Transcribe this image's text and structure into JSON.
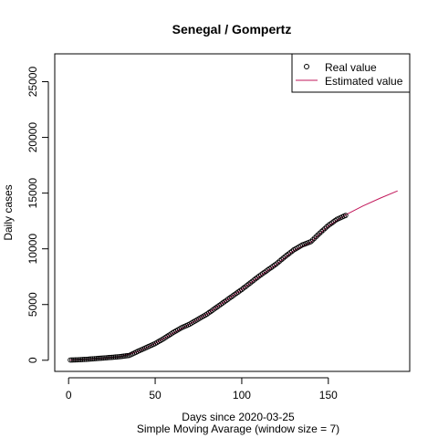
{
  "chart_data": {
    "type": "line",
    "title": "Senegal / Gompertz",
    "xlabel": "Days since 2020-03-25",
    "subtitle": "Simple Moving Avarage (window size = 7)",
    "ylabel": "Daily cases",
    "xlim": [
      -8,
      197
    ],
    "ylim": [
      -1000,
      27500
    ],
    "x_ticks": [
      0,
      50,
      100,
      150
    ],
    "y_ticks": [
      0,
      5000,
      10000,
      15000,
      20000,
      25000
    ],
    "grid": false,
    "legend_position": "top-right",
    "series": [
      {
        "name": "Real value",
        "style": "points",
        "color": "#000000",
        "x_range": [
          1,
          160
        ],
        "x": [
          1,
          5,
          10,
          15,
          20,
          25,
          30,
          35,
          40,
          45,
          50,
          55,
          60,
          65,
          70,
          75,
          80,
          85,
          90,
          95,
          100,
          105,
          110,
          115,
          120,
          125,
          130,
          135,
          140,
          145,
          150,
          155,
          160
        ],
        "y": [
          20,
          40,
          80,
          140,
          200,
          260,
          330,
          430,
          800,
          1150,
          1500,
          1950,
          2450,
          2900,
          3250,
          3700,
          4150,
          4700,
          5250,
          5800,
          6350,
          6950,
          7550,
          8100,
          8650,
          9300,
          9900,
          10350,
          10650,
          11400,
          12100,
          12650,
          13000
        ]
      },
      {
        "name": "Estimated value",
        "style": "line",
        "color": "#c2185b",
        "x": [
          1,
          10,
          20,
          30,
          40,
          50,
          60,
          70,
          80,
          90,
          100,
          110,
          120,
          130,
          140,
          150,
          160,
          170,
          180,
          190
        ],
        "y": [
          10,
          80,
          180,
          320,
          780,
          1500,
          2400,
          3250,
          4150,
          5250,
          6350,
          7500,
          8600,
          9850,
          10600,
          12050,
          13050,
          13850,
          14550,
          15200
        ]
      }
    ]
  }
}
